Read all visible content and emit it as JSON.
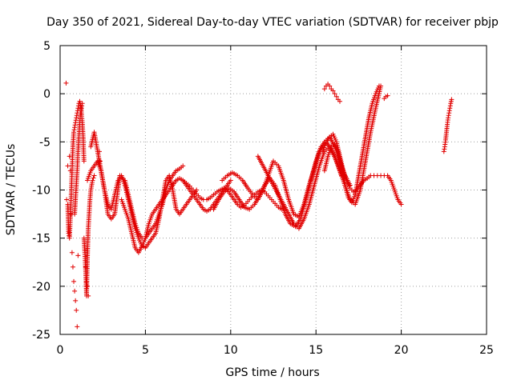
{
  "chart_data": {
    "type": "scatter",
    "title": "Day 350 of 2021, Sidereal Day-to-day VTEC variation (SDTVAR) for receiver pbjp",
    "xlabel": "GPS time / hours",
    "ylabel": "SDTVAR / TECUs",
    "xlim": [
      0,
      25
    ],
    "ylim": [
      -25,
      5
    ],
    "xticks": [
      0,
      5,
      10,
      15,
      20,
      25
    ],
    "yticks": [
      -25,
      -20,
      -15,
      -10,
      -5,
      0,
      5
    ],
    "grid": true,
    "marker": "+",
    "color": "#e00000",
    "series": [
      {
        "name": "s0",
        "x": [
          0.45,
          0.5,
          0.55,
          0.6,
          0.65,
          0.7,
          0.75,
          0.8,
          0.85,
          0.9,
          0.95,
          1.0,
          1.05,
          1.1,
          1.15,
          1.2,
          1.25,
          1.3,
          1.35,
          1.4
        ],
        "y": [
          -11.5,
          -14.5,
          -15.0,
          -13.0,
          -10.5,
          -8.0,
          -5.5,
          -4.0,
          -3.5,
          -3.0,
          -2.5,
          -2.0,
          -1.5,
          -1.0,
          -0.8,
          -1.2,
          -2.0,
          -3.0,
          -4.5,
          -7.0
        ]
      },
      {
        "name": "s1",
        "x": [
          0.85,
          0.9,
          0.95,
          1.0,
          1.05,
          1.1,
          1.15,
          1.2,
          1.25,
          1.3
        ],
        "y": [
          -12.5,
          -11.0,
          -9.5,
          -8.0,
          -6.0,
          -4.5,
          -3.0,
          -2.0,
          -1.5,
          -1.0
        ]
      },
      {
        "name": "s2",
        "x": [
          1.4,
          1.45,
          1.5,
          1.55,
          1.6,
          1.65,
          1.7,
          1.75,
          1.8,
          1.9,
          2.0
        ],
        "y": [
          -15.0,
          -16.5,
          -18.5,
          -21.0,
          -17.0,
          -14.0,
          -12.5,
          -11.0,
          -10.0,
          -9.0,
          -8.5
        ]
      },
      {
        "name": "s3",
        "x": [
          1.6,
          1.8,
          2.0,
          2.2,
          2.4,
          2.6,
          2.8,
          3.0,
          3.2,
          3.5,
          3.8,
          4.0,
          4.2,
          4.4,
          4.6,
          4.8,
          5.0,
          5.2,
          5.4,
          5.6,
          5.8,
          6.0,
          6.2,
          6.4,
          6.6,
          6.8,
          7.0,
          7.2
        ],
        "y": [
          -9.0,
          -8.0,
          -7.5,
          -7.0,
          -8.0,
          -10.0,
          -12.5,
          -13.0,
          -12.5,
          -8.5,
          -9.0,
          -10.5,
          -12.0,
          -13.5,
          -14.5,
          -15.0,
          -15.0,
          -14.5,
          -14.0,
          -13.5,
          -12.5,
          -11.5,
          -10.0,
          -9.0,
          -8.5,
          -8.0,
          -7.8,
          -7.5
        ]
      },
      {
        "name": "s4",
        "x": [
          1.8,
          2.0,
          2.2,
          2.4,
          2.6,
          2.8,
          3.0,
          3.2,
          3.4,
          3.6,
          3.8,
          4.0,
          4.2,
          4.4,
          4.6,
          4.8,
          5.0,
          5.2,
          5.4,
          5.6,
          5.8,
          6.0,
          6.2,
          6.4,
          6.6,
          6.8,
          7.0,
          7.2,
          7.4,
          7.6,
          7.8,
          8.0
        ],
        "y": [
          -5.5,
          -4.0,
          -6.0,
          -8.0,
          -10.0,
          -11.5,
          -12.0,
          -10.5,
          -9.0,
          -8.5,
          -9.5,
          -11.0,
          -12.5,
          -14.0,
          -15.0,
          -15.8,
          -16.0,
          -15.5,
          -15.0,
          -14.5,
          -13.0,
          -11.0,
          -9.0,
          -8.5,
          -10.0,
          -12.0,
          -12.5,
          -12.0,
          -11.5,
          -11.0,
          -10.5,
          -10.0
        ]
      },
      {
        "name": "s5",
        "x": [
          3.6,
          3.8,
          4.0,
          4.2,
          4.4,
          4.6,
          4.8,
          5.0,
          5.2,
          5.4,
          5.6,
          5.8,
          6.0,
          6.2,
          6.4,
          6.6,
          6.8,
          7.0,
          7.2,
          7.4,
          7.6,
          7.8,
          8.0,
          8.2,
          8.4,
          8.6,
          8.8,
          9.0,
          9.2,
          9.4,
          9.6,
          9.8,
          10.0
        ],
        "y": [
          -11.0,
          -12.0,
          -13.0,
          -14.5,
          -16.0,
          -16.5,
          -15.8,
          -15.0,
          -13.5,
          -12.5,
          -12.0,
          -11.5,
          -11.0,
          -10.5,
          -10.0,
          -9.5,
          -9.0,
          -8.8,
          -9.0,
          -9.5,
          -10.0,
          -10.5,
          -11.0,
          -11.5,
          -12.0,
          -12.2,
          -12.0,
          -11.5,
          -11.0,
          -10.5,
          -10.0,
          -9.5,
          -9.0
        ]
      },
      {
        "name": "s6",
        "x": [
          7.2,
          7.4,
          7.6,
          7.8,
          8.0,
          8.2,
          8.4,
          8.6,
          8.8,
          9.0,
          9.2,
          9.4,
          9.6,
          9.8,
          10.0,
          10.2,
          10.4,
          10.6,
          10.8,
          11.0,
          11.2,
          11.4,
          11.6,
          11.8,
          12.0,
          12.2,
          12.4,
          12.6,
          12.8,
          13.0
        ],
        "y": [
          -9.0,
          -9.3,
          -9.6,
          -10.0,
          -10.4,
          -10.8,
          -11.0,
          -11.0,
          -10.8,
          -10.5,
          -10.2,
          -10.0,
          -9.8,
          -10.0,
          -10.5,
          -11.0,
          -11.5,
          -11.8,
          -11.6,
          -11.2,
          -10.8,
          -10.5,
          -10.2,
          -10.0,
          -10.2,
          -10.6,
          -11.0,
          -11.4,
          -11.8,
          -12.0
        ]
      },
      {
        "name": "s7",
        "x": [
          9.0,
          9.3,
          9.6,
          9.9,
          10.2,
          10.5,
          10.8,
          11.1,
          11.4,
          11.7,
          12.0,
          12.3,
          12.6,
          12.9,
          13.2,
          13.5,
          13.8,
          14.1,
          14.4,
          14.7,
          15.0,
          15.3,
          15.6,
          15.9,
          16.2,
          16.5
        ],
        "y": [
          -12.0,
          -11.0,
          -10.2,
          -9.8,
          -10.2,
          -11.0,
          -11.8,
          -12.0,
          -11.5,
          -10.5,
          -9.5,
          -8.8,
          -9.5,
          -11.0,
          -12.5,
          -13.5,
          -13.8,
          -13.0,
          -11.0,
          -9.0,
          -7.0,
          -5.5,
          -5.0,
          -5.8,
          -7.0,
          -8.5
        ]
      },
      {
        "name": "s8",
        "x": [
          9.5,
          9.8,
          10.1,
          10.4,
          10.7,
          11.0,
          11.3,
          11.6,
          11.9,
          12.2,
          12.5,
          12.8,
          13.1,
          13.4,
          13.7,
          14.0,
          14.3,
          14.6,
          14.9,
          15.2,
          15.5,
          15.8,
          16.1,
          16.4,
          16.7,
          17.0
        ],
        "y": [
          -9.0,
          -8.5,
          -8.2,
          -8.5,
          -9.0,
          -9.8,
          -10.5,
          -11.0,
          -10.0,
          -8.5,
          -7.0,
          -7.5,
          -9.0,
          -11.0,
          -12.5,
          -12.8,
          -11.5,
          -9.5,
          -7.8,
          -6.0,
          -5.0,
          -4.5,
          -5.5,
          -7.0,
          -8.5,
          -9.5
        ]
      },
      {
        "name": "s9",
        "x": [
          11.6,
          11.9,
          12.2,
          12.5,
          12.8,
          13.1,
          13.4,
          13.7,
          14.0,
          14.3,
          14.6,
          14.9,
          15.2,
          15.5,
          15.8,
          16.1,
          16.4,
          16.7,
          17.0,
          17.3,
          17.6,
          17.9,
          18.2,
          18.5,
          18.8
        ],
        "y": [
          -6.5,
          -7.5,
          -8.5,
          -9.5,
          -10.5,
          -11.5,
          -12.5,
          -13.5,
          -14.0,
          -13.0,
          -11.5,
          -9.5,
          -7.5,
          -6.0,
          -5.5,
          -6.5,
          -8.0,
          -9.5,
          -11.0,
          -11.5,
          -10.0,
          -7.0,
          -4.0,
          -1.5,
          0.8
        ]
      },
      {
        "name": "s10",
        "x": [
          15.4,
          15.6,
          15.8,
          16.0,
          16.2,
          16.4,
          16.6,
          16.8,
          17.0,
          17.2,
          17.4,
          17.6,
          17.8,
          18.0,
          18.2,
          18.4,
          18.6,
          18.8,
          19.0,
          19.2,
          19.4,
          19.6,
          19.8,
          20.0
        ],
        "y": [
          -6.0,
          -5.0,
          -4.5,
          -4.2,
          -5.0,
          -6.5,
          -8.0,
          -9.0,
          -9.8,
          -10.2,
          -10.0,
          -9.5,
          -9.0,
          -8.8,
          -8.5,
          -8.5,
          -8.5,
          -8.5,
          -8.5,
          -8.5,
          -9.0,
          -10.0,
          -11.0,
          -11.5
        ]
      },
      {
        "name": "s11",
        "x": [
          15.5,
          15.7,
          15.9,
          16.1,
          16.3,
          16.5,
          16.7,
          16.9,
          17.1,
          17.3,
          17.5,
          17.7,
          17.9,
          18.1,
          18.3,
          18.5,
          18.7
        ],
        "y": [
          -8.0,
          -6.5,
          -5.5,
          -5.2,
          -6.0,
          -7.5,
          -9.5,
          -10.8,
          -11.3,
          -10.5,
          -8.5,
          -6.5,
          -4.5,
          -2.5,
          -1.0,
          0.0,
          0.8
        ]
      },
      {
        "name": "s12",
        "x": [
          15.5,
          15.6,
          15.7,
          15.8,
          15.9,
          16.0,
          16.1,
          16.2,
          16.3,
          16.4
        ],
        "y": [
          0.5,
          0.8,
          1.0,
          0.8,
          0.5,
          0.3,
          0.0,
          -0.3,
          -0.6,
          -0.8
        ]
      },
      {
        "name": "s13",
        "x": [
          19.0,
          19.1,
          19.2
        ],
        "y": [
          -0.5,
          -0.3,
          -0.2
        ]
      },
      {
        "name": "s14",
        "x": [
          22.5,
          22.55,
          22.6,
          22.65,
          22.7,
          22.75,
          22.8,
          22.85,
          22.9,
          22.95
        ],
        "y": [
          -6.0,
          -5.5,
          -4.8,
          -4.0,
          -3.2,
          -2.5,
          -2.0,
          -1.5,
          -1.0,
          -0.6
        ]
      },
      {
        "name": "s15",
        "x": [
          0.35,
          0.38,
          0.45,
          0.55,
          0.6,
          0.65,
          0.7,
          0.75,
          0.8,
          0.85,
          0.9,
          0.95,
          1.0,
          1.05,
          1.5,
          1.55,
          1.6,
          1.65,
          2.3,
          2.35,
          2.4
        ],
        "y": [
          1.1,
          -11.0,
          -7.5,
          -6.5,
          -8.0,
          -12.5,
          -16.5,
          -18.0,
          -19.5,
          -20.5,
          -21.5,
          -22.5,
          -24.2,
          -16.8,
          -18.0,
          -19.5,
          -20.0,
          -21.0,
          -6.0,
          -7.0,
          -8.0
        ]
      }
    ]
  }
}
